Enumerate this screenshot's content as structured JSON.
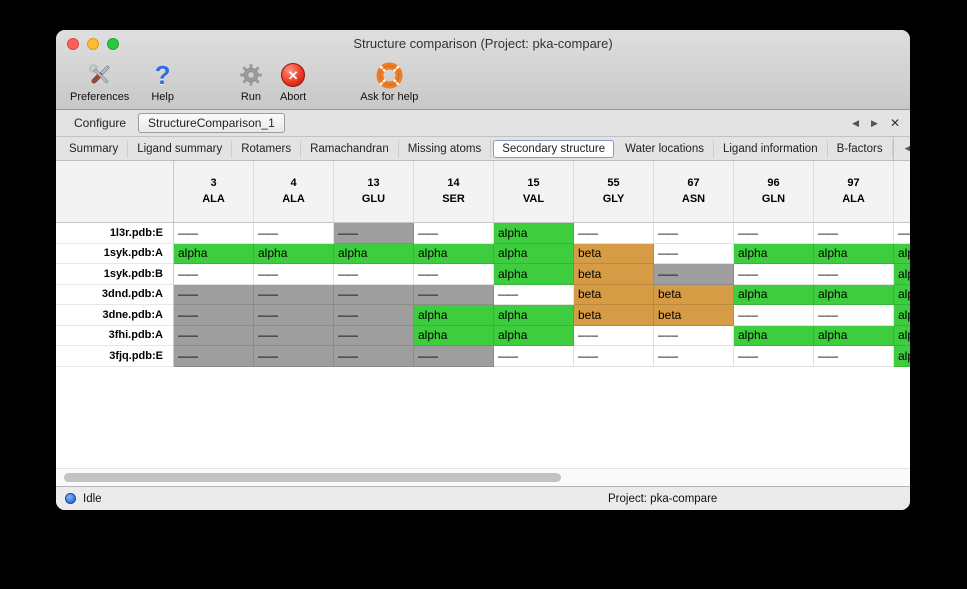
{
  "window": {
    "title": "Structure comparison (Project: pka-compare)",
    "controls": [
      "close-button",
      "minimize-button",
      "zoom-button"
    ]
  },
  "toolbar": {
    "items": [
      {
        "name": "preferences",
        "label": "Preferences",
        "icon": "tools-icon"
      },
      {
        "name": "help",
        "label": "Help",
        "icon": "question-icon"
      },
      {
        "name": "run",
        "label": "Run",
        "icon": "gear-icon"
      },
      {
        "name": "abort",
        "label": "Abort",
        "icon": "abort-icon"
      },
      {
        "name": "ask-for-help",
        "label": "Ask for help",
        "icon": "lifebuoy-icon"
      }
    ]
  },
  "document_tabs": {
    "tabs": [
      {
        "label": "Configure",
        "selected": false
      },
      {
        "label": "StructureComparison_1",
        "selected": true
      }
    ],
    "prev_label": "◀",
    "next_label": "▶",
    "close_label": "✕"
  },
  "section_tabs": {
    "tabs": [
      {
        "label": "Summary",
        "selected": false
      },
      {
        "label": "Ligand summary",
        "selected": false
      },
      {
        "label": "Rotamers",
        "selected": false
      },
      {
        "label": "Ramachandran",
        "selected": false
      },
      {
        "label": "Missing atoms",
        "selected": false
      },
      {
        "label": "Secondary structure",
        "selected": true
      },
      {
        "label": "Water locations",
        "selected": false
      },
      {
        "label": "Ligand information",
        "selected": false
      },
      {
        "label": "B-factors",
        "selected": false
      }
    ],
    "prev_label": "◀",
    "next_label": "▶"
  },
  "table": {
    "columns": [
      {
        "number": "3",
        "residue": "ALA"
      },
      {
        "number": "4",
        "residue": "ALA"
      },
      {
        "number": "13",
        "residue": "GLU"
      },
      {
        "number": "14",
        "residue": "SER"
      },
      {
        "number": "15",
        "residue": "VAL"
      },
      {
        "number": "55",
        "residue": "GLY"
      },
      {
        "number": "67",
        "residue": "ASN"
      },
      {
        "number": "96",
        "residue": "GLN"
      },
      {
        "number": "97",
        "residue": "ALA"
      },
      {
        "number": "",
        "residue": ""
      }
    ],
    "legend_colors": {
      "alpha": "#3ecd3e",
      "beta": "#d59b45",
      "unknown": "#9e9e9e",
      "none": "#ffffff"
    },
    "rows": [
      {
        "label": "1l3r.pdb:E",
        "cells": [
          {
            "text": "–––",
            "type": "none"
          },
          {
            "text": "–––",
            "type": "none"
          },
          {
            "text": "–––",
            "type": "unknown"
          },
          {
            "text": "–––",
            "type": "none"
          },
          {
            "text": "alpha",
            "type": "alpha"
          },
          {
            "text": "–––",
            "type": "none"
          },
          {
            "text": "–––",
            "type": "none"
          },
          {
            "text": "–––",
            "type": "none"
          },
          {
            "text": "–––",
            "type": "none"
          },
          {
            "text": "–––",
            "type": "none"
          }
        ]
      },
      {
        "label": "1syk.pdb:A",
        "cells": [
          {
            "text": "alpha",
            "type": "alpha"
          },
          {
            "text": "alpha",
            "type": "alpha"
          },
          {
            "text": "alpha",
            "type": "alpha"
          },
          {
            "text": "alpha",
            "type": "alpha"
          },
          {
            "text": "alpha",
            "type": "alpha"
          },
          {
            "text": "beta",
            "type": "beta"
          },
          {
            "text": "–––",
            "type": "none"
          },
          {
            "text": "alpha",
            "type": "alpha"
          },
          {
            "text": "alpha",
            "type": "alpha"
          },
          {
            "text": "alpha",
            "type": "alpha"
          }
        ]
      },
      {
        "label": "1syk.pdb:B",
        "cells": [
          {
            "text": "–––",
            "type": "none"
          },
          {
            "text": "–––",
            "type": "none"
          },
          {
            "text": "–––",
            "type": "none"
          },
          {
            "text": "–––",
            "type": "none"
          },
          {
            "text": "alpha",
            "type": "alpha"
          },
          {
            "text": "beta",
            "type": "beta"
          },
          {
            "text": "–––",
            "type": "unknown"
          },
          {
            "text": "–––",
            "type": "none"
          },
          {
            "text": "–––",
            "type": "none"
          },
          {
            "text": "alpha",
            "type": "alpha"
          }
        ]
      },
      {
        "label": "3dnd.pdb:A",
        "cells": [
          {
            "text": "–––",
            "type": "unknown"
          },
          {
            "text": "–––",
            "type": "unknown"
          },
          {
            "text": "–––",
            "type": "unknown"
          },
          {
            "text": "–––",
            "type": "unknown"
          },
          {
            "text": "–––",
            "type": "none"
          },
          {
            "text": "beta",
            "type": "beta"
          },
          {
            "text": "beta",
            "type": "beta"
          },
          {
            "text": "alpha",
            "type": "alpha"
          },
          {
            "text": "alpha",
            "type": "alpha"
          },
          {
            "text": "alpha",
            "type": "alpha"
          }
        ]
      },
      {
        "label": "3dne.pdb:A",
        "cells": [
          {
            "text": "–––",
            "type": "unknown"
          },
          {
            "text": "–––",
            "type": "unknown"
          },
          {
            "text": "–––",
            "type": "unknown"
          },
          {
            "text": "alpha",
            "type": "alpha"
          },
          {
            "text": "alpha",
            "type": "alpha"
          },
          {
            "text": "beta",
            "type": "beta"
          },
          {
            "text": "beta",
            "type": "beta"
          },
          {
            "text": "–––",
            "type": "none"
          },
          {
            "text": "–––",
            "type": "none"
          },
          {
            "text": "alpha",
            "type": "alpha"
          }
        ]
      },
      {
        "label": "3fhi.pdb:A",
        "cells": [
          {
            "text": "–––",
            "type": "unknown"
          },
          {
            "text": "–––",
            "type": "unknown"
          },
          {
            "text": "–––",
            "type": "unknown"
          },
          {
            "text": "alpha",
            "type": "alpha"
          },
          {
            "text": "alpha",
            "type": "alpha"
          },
          {
            "text": "–––",
            "type": "none"
          },
          {
            "text": "–––",
            "type": "none"
          },
          {
            "text": "alpha",
            "type": "alpha"
          },
          {
            "text": "alpha",
            "type": "alpha"
          },
          {
            "text": "alpha",
            "type": "alpha"
          }
        ]
      },
      {
        "label": "3fjq.pdb:E",
        "cells": [
          {
            "text": "–––",
            "type": "unknown"
          },
          {
            "text": "–––",
            "type": "unknown"
          },
          {
            "text": "–––",
            "type": "unknown"
          },
          {
            "text": "–––",
            "type": "unknown"
          },
          {
            "text": "–––",
            "type": "none"
          },
          {
            "text": "–––",
            "type": "none"
          },
          {
            "text": "–––",
            "type": "none"
          },
          {
            "text": "–––",
            "type": "none"
          },
          {
            "text": "–––",
            "type": "none"
          },
          {
            "text": "alpha",
            "type": "alpha"
          }
        ]
      }
    ]
  },
  "status_bar": {
    "status": "Idle",
    "project": "Project: pka-compare",
    "indicator_icon": "blue-status-dot"
  }
}
